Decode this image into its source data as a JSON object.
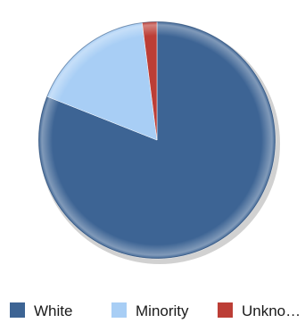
{
  "chart_data": {
    "type": "pie",
    "title": "",
    "slices": [
      {
        "label": "White",
        "value": 81,
        "color": "#3D6494"
      },
      {
        "label": "Minority",
        "value": 17,
        "color": "#A8CEF5"
      },
      {
        "label": "Unkno…",
        "value": 2,
        "color": "#BC3E36"
      }
    ],
    "legend_position": "bottom"
  }
}
